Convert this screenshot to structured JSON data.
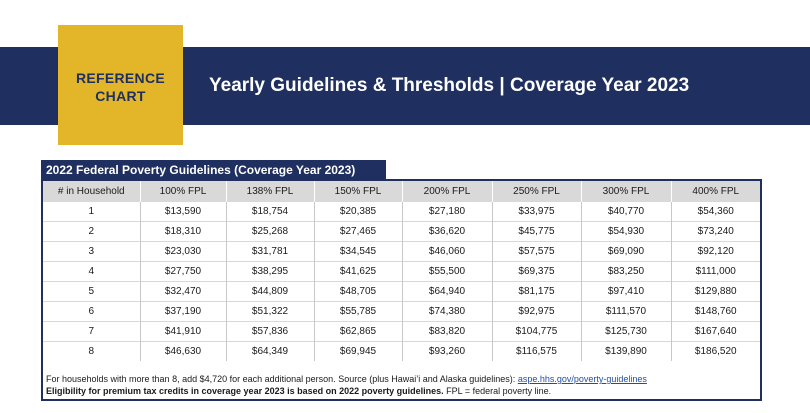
{
  "header": {
    "badge_line1": "REFERENCE",
    "badge_line2": "CHART",
    "title": "Yearly Guidelines & Thresholds | Coverage Year 2023"
  },
  "table": {
    "title": "2022 Federal Poverty Guidelines (Coverage Year 2023)",
    "columns": [
      "# in Household",
      "100% FPL",
      "138% FPL",
      "150% FPL",
      "200% FPL",
      "250% FPL",
      "300% FPL",
      "400% FPL"
    ],
    "rows": [
      [
        "1",
        "$13,590",
        "$18,754",
        "$20,385",
        "$27,180",
        "$33,975",
        "$40,770",
        "$54,360"
      ],
      [
        "2",
        "$18,310",
        "$25,268",
        "$27,465",
        "$36,620",
        "$45,775",
        "$54,930",
        "$73,240"
      ],
      [
        "3",
        "$23,030",
        "$31,781",
        "$34,545",
        "$46,060",
        "$57,575",
        "$69,090",
        "$92,120"
      ],
      [
        "4",
        "$27,750",
        "$38,295",
        "$41,625",
        "$55,500",
        "$69,375",
        "$83,250",
        "$111,000"
      ],
      [
        "5",
        "$32,470",
        "$44,809",
        "$48,705",
        "$64,940",
        "$81,175",
        "$97,410",
        "$129,880"
      ],
      [
        "6",
        "$37,190",
        "$51,322",
        "$55,785",
        "$74,380",
        "$92,975",
        "$111,570",
        "$148,760"
      ],
      [
        "7",
        "$41,910",
        "$57,836",
        "$62,865",
        "$83,820",
        "$104,775",
        "$125,730",
        "$167,640"
      ],
      [
        "8",
        "$46,630",
        "$64,349",
        "$69,945",
        "$93,260",
        "$116,575",
        "$139,890",
        "$186,520"
      ]
    ]
  },
  "footnote": {
    "line1_text": "For households with more than 8, add $4,720 for each additional person. Source (plus Hawai’i and Alaska guidelines):",
    "link_text": "aspe.hhs.gov/poverty-guidelines",
    "line2_bold": "Eligibility for premium tax credits in coverage year 2023 is based on 2022 poverty guidelines.",
    "line2_text": "FPL = federal poverty line."
  },
  "colors": {
    "navy": "#1f2f5f",
    "gold": "#e3b62a",
    "header_gray": "#d9d9d9",
    "link": "#1f4fa5"
  }
}
